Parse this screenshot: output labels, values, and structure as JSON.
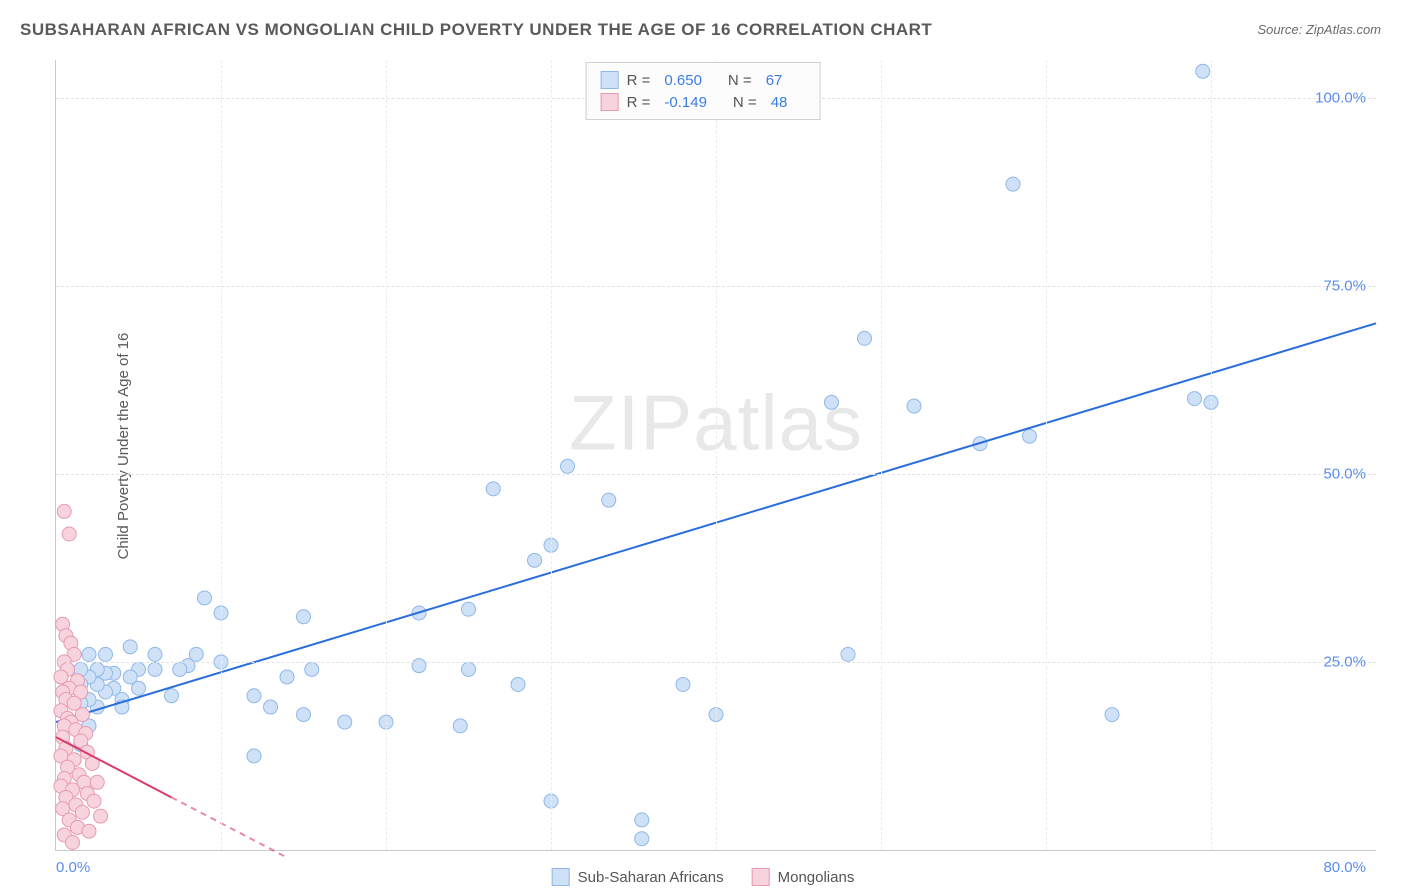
{
  "title": "SUBSAHARAN AFRICAN VS MONGOLIAN CHILD POVERTY UNDER THE AGE OF 16 CORRELATION CHART",
  "source_label": "Source: ZipAtlas.com",
  "ylabel": "Child Poverty Under the Age of 16",
  "watermark": "ZIPatlas",
  "chart": {
    "type": "scatter-with-trend",
    "xlim": [
      0,
      80
    ],
    "ylim": [
      0,
      105
    ],
    "ytick_labels": [
      "25.0%",
      "50.0%",
      "75.0%",
      "100.0%"
    ],
    "ytick_values": [
      25,
      50,
      75,
      100
    ],
    "xtick_left": "0.0%",
    "xtick_right": "80.0%",
    "vrule_positions": [
      10,
      20,
      30,
      40,
      50,
      60,
      70
    ],
    "background_color": "#ffffff",
    "grid_color": "#e2e2e2",
    "axis_color": "#c8c8c8",
    "marker_radius": 7,
    "series": [
      {
        "name": "Sub-Saharan Africans",
        "fill": "#cfe1f7",
        "stroke": "#8fb8e8",
        "trend_color": "#2a6edb",
        "trend_width": 2,
        "trend_dash_after_x": null,
        "trend": {
          "x1": 0,
          "y1": 17,
          "x2": 80,
          "y2": 70
        },
        "R": "0.650",
        "N": "67",
        "points": [
          [
            69.5,
            103.5
          ],
          [
            58,
            88.5
          ],
          [
            49,
            68
          ],
          [
            47,
            59.5
          ],
          [
            52,
            59
          ],
          [
            69,
            60
          ],
          [
            70,
            59.5
          ],
          [
            56,
            54
          ],
          [
            64,
            18
          ],
          [
            59,
            55
          ],
          [
            33.5,
            46.5
          ],
          [
            31,
            51
          ],
          [
            26.5,
            48
          ],
          [
            29,
            38.5
          ],
          [
            30,
            40.5
          ],
          [
            25,
            32
          ],
          [
            25,
            24
          ],
          [
            22,
            31.5
          ],
          [
            22,
            24.5
          ],
          [
            15,
            31
          ],
          [
            15.5,
            24
          ],
          [
            14,
            23
          ],
          [
            13,
            19
          ],
          [
            12,
            20.5
          ],
          [
            12,
            12.5
          ],
          [
            10,
            25
          ],
          [
            10,
            31.5
          ],
          [
            9,
            33.5
          ],
          [
            8.5,
            26
          ],
          [
            8,
            24.5
          ],
          [
            7.5,
            24
          ],
          [
            7,
            20.5
          ],
          [
            6,
            26
          ],
          [
            6,
            24
          ],
          [
            5,
            24
          ],
          [
            5,
            21.5
          ],
          [
            4.5,
            27
          ],
          [
            4.5,
            23
          ],
          [
            4,
            20
          ],
          [
            4,
            19
          ],
          [
            3.5,
            23.5
          ],
          [
            3.5,
            21.5
          ],
          [
            3,
            26
          ],
          [
            3,
            23.5
          ],
          [
            3,
            21
          ],
          [
            2.5,
            24
          ],
          [
            2.5,
            22
          ],
          [
            2.5,
            19
          ],
          [
            2,
            26
          ],
          [
            2,
            23
          ],
          [
            2,
            20
          ],
          [
            2,
            16.5
          ],
          [
            1.5,
            22
          ],
          [
            1.5,
            19.5
          ],
          [
            1.5,
            14
          ],
          [
            1.5,
            24
          ],
          [
            15,
            18
          ],
          [
            17.5,
            17
          ],
          [
            20,
            17
          ],
          [
            24.5,
            16.5
          ],
          [
            28,
            22
          ],
          [
            30,
            6.5
          ],
          [
            38,
            22
          ],
          [
            35.5,
            1.5
          ],
          [
            35.5,
            4
          ],
          [
            48,
            26
          ],
          [
            40,
            18
          ]
        ]
      },
      {
        "name": "Mongolians",
        "fill": "#f7d4dd",
        "stroke": "#e79ab0",
        "trend_color": "#da3b6a",
        "trend_width": 2,
        "trend_dash_after_x": 7,
        "trend": {
          "x1": 0,
          "y1": 15,
          "x2": 14,
          "y2": -1
        },
        "R": "-0.149",
        "N": "48",
        "points": [
          [
            0.5,
            45
          ],
          [
            0.8,
            42
          ],
          [
            0.4,
            30
          ],
          [
            0.6,
            28.5
          ],
          [
            0.9,
            27.5
          ],
          [
            1.1,
            26
          ],
          [
            0.5,
            25
          ],
          [
            0.7,
            24
          ],
          [
            0.3,
            23
          ],
          [
            1.3,
            22.5
          ],
          [
            0.8,
            21.5
          ],
          [
            0.4,
            21
          ],
          [
            1.5,
            21
          ],
          [
            0.6,
            20
          ],
          [
            1.1,
            19.5
          ],
          [
            0.3,
            18.5
          ],
          [
            1.6,
            18
          ],
          [
            0.7,
            17.5
          ],
          [
            0.9,
            17
          ],
          [
            0.5,
            16.5
          ],
          [
            1.2,
            16
          ],
          [
            1.8,
            15.5
          ],
          [
            0.4,
            15
          ],
          [
            1.5,
            14.5
          ],
          [
            0.6,
            13.5
          ],
          [
            1.9,
            13
          ],
          [
            0.3,
            12.5
          ],
          [
            1.1,
            12
          ],
          [
            2.2,
            11.5
          ],
          [
            0.7,
            11
          ],
          [
            1.4,
            10
          ],
          [
            0.5,
            9.5
          ],
          [
            1.7,
            9
          ],
          [
            2.5,
            9
          ],
          [
            0.3,
            8.5
          ],
          [
            1.0,
            8
          ],
          [
            1.9,
            7.5
          ],
          [
            0.6,
            7
          ],
          [
            2.3,
            6.5
          ],
          [
            1.2,
            6
          ],
          [
            0.4,
            5.5
          ],
          [
            1.6,
            5
          ],
          [
            2.7,
            4.5
          ],
          [
            0.8,
            4
          ],
          [
            1.3,
            3
          ],
          [
            2.0,
            2.5
          ],
          [
            0.5,
            2
          ],
          [
            1.0,
            1
          ]
        ]
      }
    ]
  },
  "legend_top": {
    "border_color": "#d0d0d0",
    "R_label": "R =",
    "N_label": "N ="
  },
  "legend_bottom": {
    "items": [
      "Sub-Saharan Africans",
      "Mongolians"
    ]
  }
}
